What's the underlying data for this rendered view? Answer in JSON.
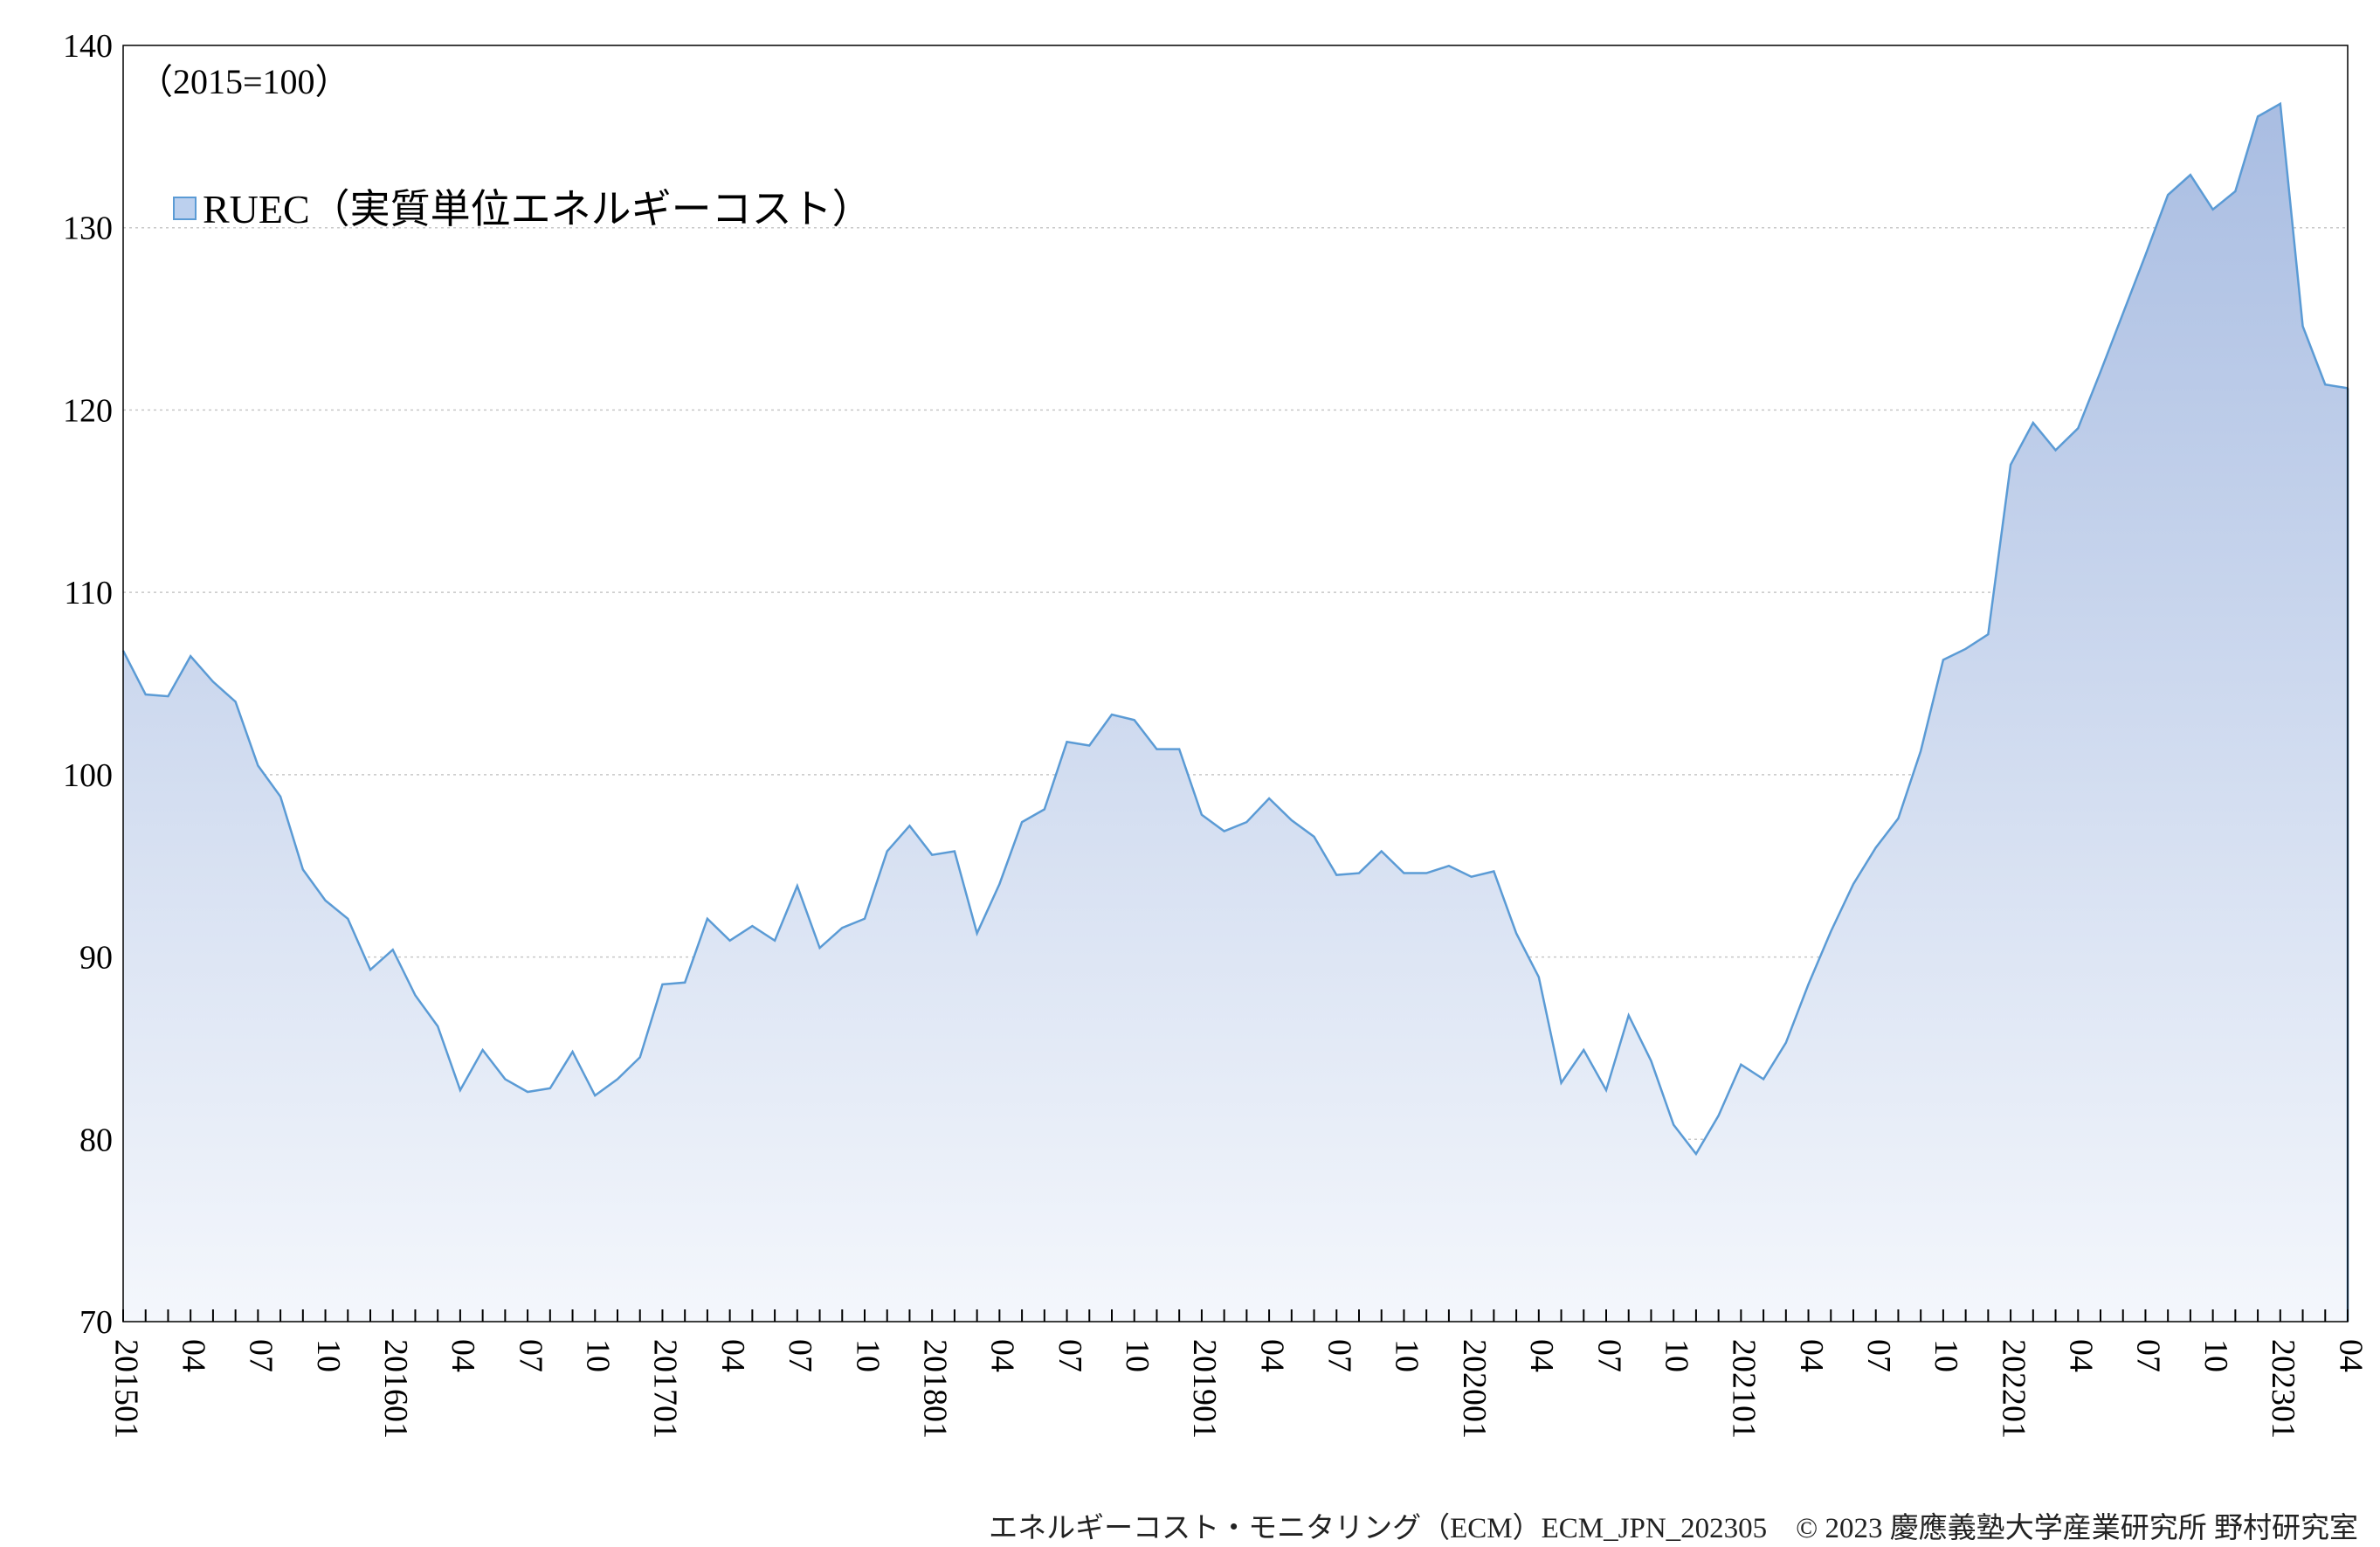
{
  "chart_data": {
    "type": "area",
    "title": "",
    "xlabel": "",
    "ylabel": "",
    "unit_note": "（2015=100）",
    "ylim": [
      70,
      140
    ],
    "yticks": [
      70,
      80,
      90,
      100,
      110,
      120,
      130,
      140
    ],
    "grid": "horizontal dotted",
    "legend_position": "top-left",
    "colors": {
      "line": "#5b9bd5",
      "fill_top": "#a9bde2",
      "fill_bottom": "#f4f7fc",
      "grid": "#c8c8c8"
    },
    "x_tick_labels": [
      "201501",
      "04",
      "07",
      "10",
      "201601",
      "04",
      "07",
      "10",
      "201701",
      "04",
      "07",
      "10",
      "201801",
      "04",
      "07",
      "10",
      "201901",
      "04",
      "07",
      "10",
      "202001",
      "04",
      "07",
      "10",
      "202101",
      "04",
      "07",
      "10",
      "202201",
      "04",
      "07",
      "10",
      "202301",
      "04"
    ],
    "series": [
      {
        "name": "RUEC（実質単位エネルギーコスト）",
        "values": [
          106.8,
          104.4,
          104.3,
          106.5,
          105.1,
          104.0,
          100.5,
          98.8,
          94.8,
          93.1,
          92.1,
          89.3,
          90.4,
          87.9,
          86.2,
          82.7,
          84.9,
          83.3,
          82.6,
          82.8,
          84.8,
          82.4,
          83.3,
          84.5,
          88.5,
          88.6,
          92.1,
          90.9,
          91.7,
          90.9,
          93.9,
          90.5,
          91.6,
          92.1,
          95.8,
          97.2,
          95.6,
          95.8,
          91.3,
          94.0,
          97.4,
          98.1,
          101.8,
          101.6,
          103.3,
          103.0,
          101.4,
          101.4,
          97.8,
          96.9,
          97.4,
          98.7,
          97.5,
          96.6,
          94.5,
          94.6,
          95.8,
          94.6,
          94.6,
          95.0,
          94.4,
          94.7,
          91.3,
          88.9,
          83.1,
          84.9,
          82.7,
          86.8,
          84.3,
          80.8,
          79.2,
          81.3,
          84.1,
          83.3,
          85.3,
          88.5,
          91.4,
          94.0,
          96.0,
          97.6,
          101.3,
          106.3,
          106.9,
          107.7,
          117.0,
          119.3,
          117.8,
          119.0,
          122.1,
          125.3,
          128.5,
          131.8,
          132.9,
          131.0,
          132.0,
          136.1,
          136.8,
          124.6,
          121.4,
          121.2
        ]
      }
    ]
  },
  "footer": "エネルギーコスト・モニタリング（ECM）ECM_JPN_202305　© 2023 慶應義塾大学産業研究所 野村研究室"
}
